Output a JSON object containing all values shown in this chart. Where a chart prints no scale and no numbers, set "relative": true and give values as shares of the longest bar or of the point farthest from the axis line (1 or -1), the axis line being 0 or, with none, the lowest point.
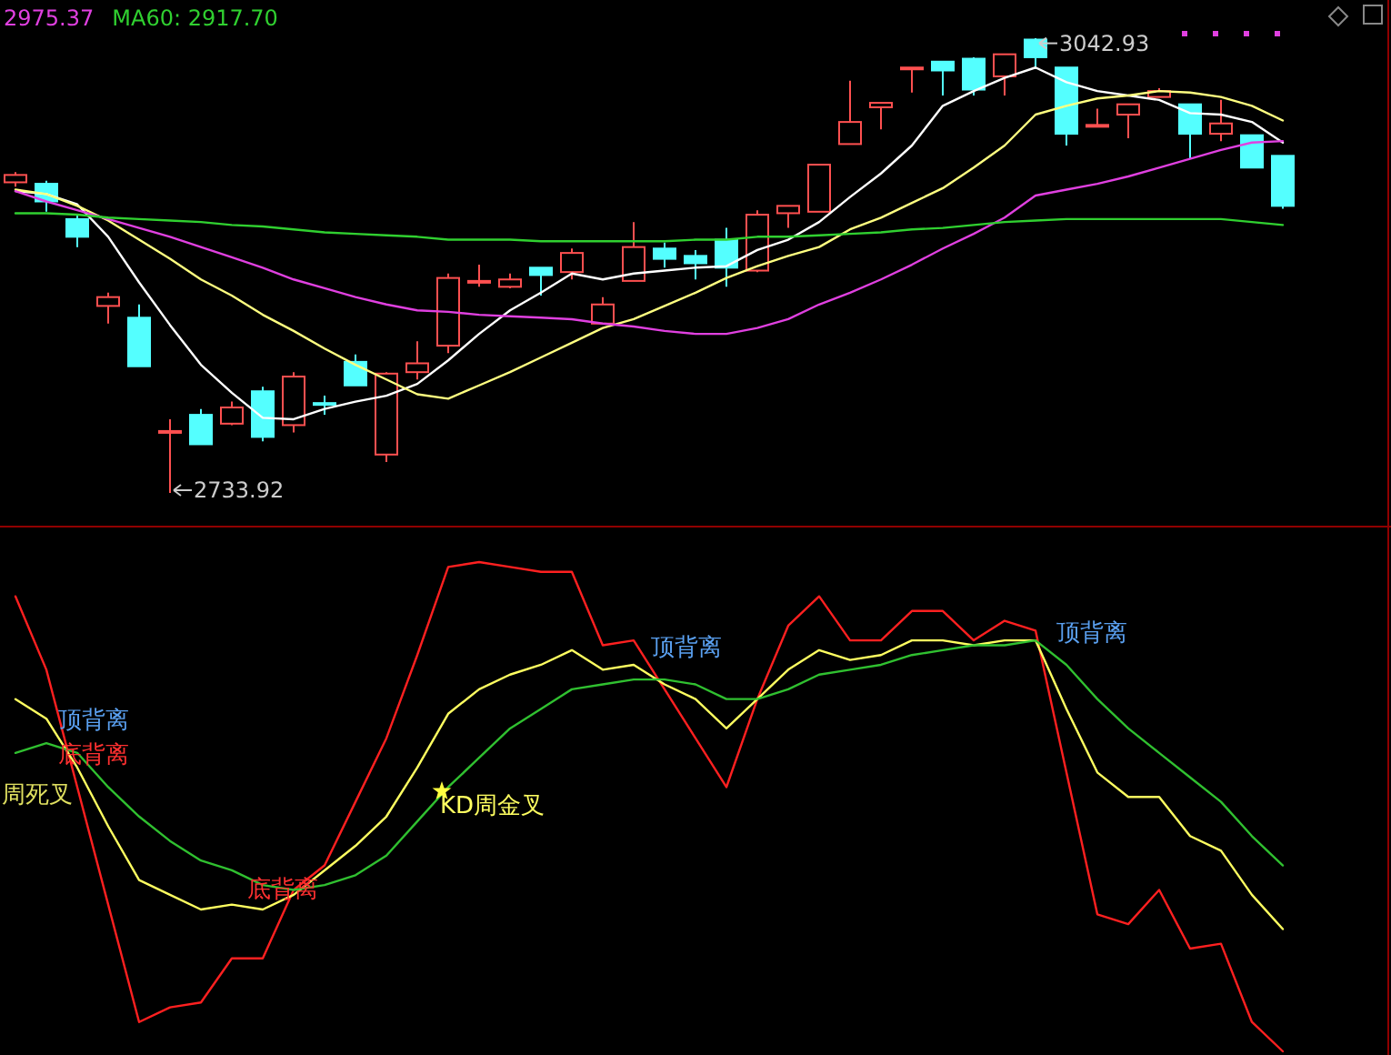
{
  "chart_data": [
    {
      "type": "candlestick",
      "categories": [
        null,
        null,
        null,
        null,
        null,
        null,
        null,
        null,
        null,
        null,
        null,
        null,
        null,
        null,
        null,
        null,
        null,
        null,
        null,
        null,
        null,
        null,
        null,
        null,
        null,
        null,
        null,
        null,
        null,
        null,
        null,
        null,
        null,
        null,
        null,
        null,
        null,
        null,
        null,
        null,
        null,
        null
      ],
      "ohlc": [
        [
          2945,
          2952,
          2942,
          2950
        ],
        [
          2944,
          2946,
          2925,
          2932
        ],
        [
          2920,
          2923,
          2901,
          2908
        ],
        [
          2861,
          2870,
          2849,
          2867
        ],
        [
          2853,
          2862,
          2820,
          2820
        ],
        [
          2775,
          2784,
          2733.92,
          2776
        ],
        [
          2787,
          2791,
          2767,
          2767
        ],
        [
          2781,
          2796,
          2780,
          2792
        ],
        [
          2803,
          2806,
          2769,
          2772
        ],
        [
          2780,
          2816,
          2775,
          2813
        ],
        [
          2795,
          2800,
          2787,
          2794
        ],
        [
          2823,
          2828,
          2807,
          2807
        ],
        [
          2760,
          2816,
          2755,
          2815
        ],
        [
          2816,
          2837,
          2811,
          2822
        ],
        [
          2834,
          2883,
          2829,
          2880
        ],
        [
          2877,
          2889,
          2874,
          2878
        ],
        [
          2874,
          2883,
          2873,
          2879
        ],
        [
          2887,
          2887,
          2868,
          2882
        ],
        [
          2884,
          2900,
          2879,
          2897
        ],
        [
          2849,
          2867,
          2849,
          2862
        ],
        [
          2878,
          2918,
          2878,
          2901
        ],
        [
          2900,
          2904,
          2887,
          2893
        ],
        [
          2895,
          2899,
          2879,
          2890
        ],
        [
          2906,
          2914,
          2874,
          2887
        ],
        [
          2885,
          2926,
          2884,
          2923
        ],
        [
          2924,
          2929,
          2914,
          2929
        ],
        [
          2925,
          2957,
          2925,
          2957
        ],
        [
          2971,
          3014,
          2971,
          2986
        ],
        [
          2996,
          2999,
          2981,
          2999
        ],
        [
          3022,
          3023,
          3006,
          3023
        ],
        [
          3027,
          3027,
          3004,
          3021
        ],
        [
          3029,
          3030,
          3004,
          3008
        ],
        [
          3017,
          3032,
          3004,
          3032
        ],
        [
          3042,
          3042.93,
          3022,
          3030
        ],
        [
          3023,
          3023,
          2970,
          2978
        ],
        [
          2983,
          2995,
          2983,
          2984
        ],
        [
          2991,
          2998,
          2975,
          2998
        ],
        [
          3003,
          3009,
          3003,
          3007
        ],
        [
          2998,
          2998,
          2961,
          2978
        ],
        [
          2978,
          3001,
          2973,
          2985
        ],
        [
          2977,
          2977,
          2955,
          2955
        ],
        [
          2963,
          2963,
          2927,
          2929
        ]
      ],
      "series": [
        {
          "type": "line",
          "color": "#ffffff",
          "values": [
            2939,
            2937,
            2930,
            2908,
            2877,
            2848,
            2821,
            2802,
            2785,
            2784,
            2791,
            2796,
            2800,
            2808,
            2824,
            2842,
            2858,
            2870,
            2883,
            2879,
            2883,
            2885,
            2887,
            2888,
            2899,
            2906,
            2918,
            2935,
            2951,
            2970,
            2997,
            3007,
            3016,
            3023,
            3013,
            3007,
            3004,
            3001,
            2992,
            2991,
            2986,
            2972
          ]
        },
        {
          "type": "line",
          "color": "#ffff80",
          "values": [
            2940,
            2937,
            2929,
            2919,
            2906,
            2893,
            2879,
            2868,
            2855,
            2844,
            2832,
            2821,
            2811,
            2801,
            2798,
            2807,
            2816,
            2826,
            2836,
            2846,
            2852,
            2861,
            2870,
            2880,
            2888,
            2895,
            2901,
            2913,
            2921,
            2931,
            2941,
            2955,
            2970,
            2991,
            2997,
            3002,
            3004,
            3007,
            3006,
            3003,
            2997,
            2987
          ]
        },
        {
          "type": "line",
          "color": "#e040e0",
          "values": [
            2939,
            2932,
            2926,
            2920,
            2914,
            2908,
            2901,
            2894,
            2887,
            2879,
            2873,
            2867,
            2862,
            2858,
            2857,
            2855,
            2854,
            2853,
            2852,
            2849,
            2847,
            2844,
            2842,
            2842,
            2846,
            2852,
            2862,
            2870,
            2879,
            2889,
            2900,
            2910,
            2921,
            2936,
            2940,
            2944,
            2949,
            2955,
            2961,
            2967,
            2972,
            2973
          ]
        },
        {
          "type": "line",
          "color": "#30d030",
          "values": [
            2924,
            2924,
            2923,
            2921,
            2920,
            2919,
            2918,
            2916,
            2915,
            2913,
            2911,
            2910,
            2909,
            2908,
            2906,
            2906,
            2906,
            2905,
            2905,
            2905,
            2905,
            2905,
            2906,
            2906,
            2908,
            2908,
            2909,
            2910,
            2911,
            2913,
            2914,
            2916,
            2918,
            2919,
            2920,
            2920,
            2920,
            2920,
            2920,
            2920,
            2918,
            2916
          ]
        }
      ],
      "annotations": [
        "2975.37",
        "MA60: 2917.70",
        "3042.93",
        "2733.92"
      ]
    },
    {
      "type": "line",
      "relative": true,
      "categories": [
        null,
        null,
        null,
        null,
        null,
        null,
        null,
        null,
        null,
        null,
        null,
        null,
        null,
        null,
        null,
        null,
        null,
        null,
        null,
        null,
        null,
        null,
        null,
        null,
        null,
        null,
        null,
        null,
        null,
        null,
        null,
        null,
        null,
        null,
        null,
        null,
        null,
        null,
        null,
        null,
        null,
        null
      ],
      "series": [
        {
          "color": "#ff2020",
          "values": [
            0.93,
            0.78,
            0.54,
            0.3,
            0.06,
            0.09,
            0.1,
            0.19,
            0.19,
            0.33,
            0.38,
            0.51,
            0.64,
            0.81,
            0.99,
            1,
            0.99,
            0.98,
            0.98,
            0.83,
            0.84,
            0.74,
            0.64,
            0.54,
            0.72,
            0.87,
            0.93,
            0.84,
            0.84,
            0.9,
            0.9,
            0.84,
            0.88,
            0.86,
            0.57,
            0.28,
            0.26,
            0.33,
            0.21,
            0.22,
            0.06,
            0
          ]
        },
        {
          "color": "#ffff60",
          "values": [
            0.72,
            0.68,
            0.58,
            0.46,
            0.35,
            0.32,
            0.29,
            0.3,
            0.29,
            0.32,
            0.37,
            0.42,
            0.48,
            0.58,
            0.69,
            0.74,
            0.77,
            0.79,
            0.82,
            0.78,
            0.79,
            0.75,
            0.72,
            0.66,
            0.72,
            0.78,
            0.82,
            0.8,
            0.81,
            0.84,
            0.84,
            0.83,
            0.84,
            0.84,
            0.7,
            0.57,
            0.52,
            0.52,
            0.44,
            0.41,
            0.32,
            0.25
          ]
        },
        {
          "color": "#30c030",
          "values": [
            0.61,
            0.63,
            0.61,
            0.54,
            0.48,
            0.43,
            0.39,
            0.37,
            0.34,
            0.33,
            0.34,
            0.36,
            0.4,
            0.47,
            0.54,
            0.6,
            0.66,
            0.7,
            0.74,
            0.75,
            0.76,
            0.76,
            0.75,
            0.72,
            0.72,
            0.74,
            0.77,
            0.78,
            0.79,
            0.81,
            0.82,
            0.83,
            0.83,
            0.84,
            0.79,
            0.72,
            0.66,
            0.61,
            0.56,
            0.51,
            0.44,
            0.38
          ]
        }
      ],
      "annotations": [
        "顶背离",
        "底背离",
        "周死叉",
        "底背离",
        "KD周金叉",
        "顶背离",
        "顶背离"
      ]
    }
  ]
}
